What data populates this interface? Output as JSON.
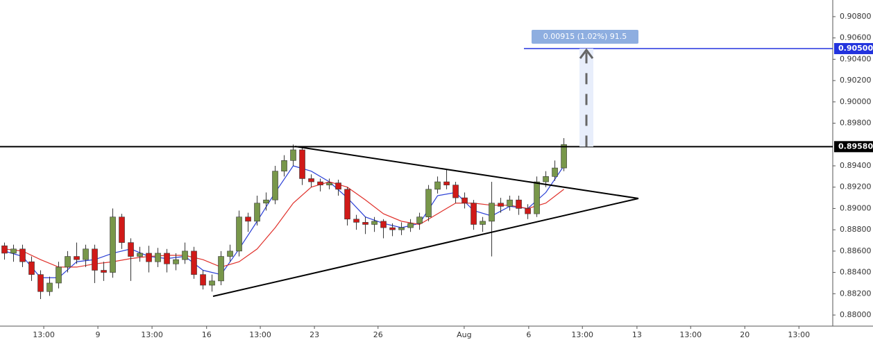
{
  "chart_data": {
    "type": "candlestick",
    "up_color": "#78974a",
    "down_color": "#d01a18",
    "x": [
      1,
      3,
      5,
      7,
      9,
      11,
      13,
      15,
      17,
      19,
      21,
      23,
      25,
      27,
      29,
      31,
      33,
      35,
      37,
      39,
      41,
      43,
      45,
      47,
      49,
      51,
      53,
      55,
      57,
      59,
      61,
      63,
      65,
      67,
      69,
      71,
      73,
      75,
      77,
      79,
      81,
      83,
      85,
      87,
      89,
      91,
      93,
      95,
      97,
      99,
      101,
      103,
      105,
      107,
      109,
      111,
      113,
      115,
      117,
      119,
      121,
      123,
      125
    ],
    "ohlc": [
      [
        0.8865,
        0.8868,
        0.8852,
        0.8858
      ],
      [
        0.8858,
        0.8866,
        0.885,
        0.8862
      ],
      [
        0.8862,
        0.8866,
        0.8845,
        0.885
      ],
      [
        0.885,
        0.8855,
        0.8832,
        0.8838
      ],
      [
        0.8838,
        0.8842,
        0.8815,
        0.8822
      ],
      [
        0.8822,
        0.8836,
        0.8818,
        0.883
      ],
      [
        0.883,
        0.885,
        0.8825,
        0.8845
      ],
      [
        0.8845,
        0.886,
        0.884,
        0.8855
      ],
      [
        0.8855,
        0.8868,
        0.8848,
        0.8852
      ],
      [
        0.8852,
        0.8866,
        0.8845,
        0.8862
      ],
      [
        0.8862,
        0.8866,
        0.883,
        0.8842
      ],
      [
        0.8842,
        0.885,
        0.8832,
        0.884
      ],
      [
        0.884,
        0.89,
        0.8835,
        0.8892
      ],
      [
        0.8892,
        0.8895,
        0.8862,
        0.8868
      ],
      [
        0.8868,
        0.8872,
        0.8832,
        0.8855
      ],
      [
        0.8855,
        0.8864,
        0.885,
        0.8858
      ],
      [
        0.8858,
        0.8865,
        0.884,
        0.885
      ],
      [
        0.885,
        0.8863,
        0.8845,
        0.8858
      ],
      [
        0.8858,
        0.8862,
        0.884,
        0.8848
      ],
      [
        0.8848,
        0.8858,
        0.8842,
        0.8852
      ],
      [
        0.8852,
        0.8868,
        0.8848,
        0.886
      ],
      [
        0.886,
        0.8864,
        0.8834,
        0.8838
      ],
      [
        0.8838,
        0.8842,
        0.8824,
        0.8828
      ],
      [
        0.8828,
        0.8838,
        0.8822,
        0.8832
      ],
      [
        0.8832,
        0.886,
        0.8828,
        0.8855
      ],
      [
        0.8855,
        0.8866,
        0.885,
        0.886
      ],
      [
        0.886,
        0.8898,
        0.8855,
        0.8892
      ],
      [
        0.8892,
        0.8896,
        0.8878,
        0.8888
      ],
      [
        0.8888,
        0.8912,
        0.8884,
        0.8905
      ],
      [
        0.8905,
        0.8915,
        0.8898,
        0.8908
      ],
      [
        0.8908,
        0.894,
        0.8904,
        0.8935
      ],
      [
        0.8935,
        0.895,
        0.893,
        0.8945
      ],
      [
        0.8945,
        0.896,
        0.894,
        0.8955
      ],
      [
        0.8955,
        0.8958,
        0.8922,
        0.8928
      ],
      [
        0.8928,
        0.8932,
        0.892,
        0.8925
      ],
      [
        0.8925,
        0.8928,
        0.8916,
        0.8922
      ],
      [
        0.8922,
        0.8928,
        0.8918,
        0.8924
      ],
      [
        0.8924,
        0.8927,
        0.8912,
        0.8918
      ],
      [
        0.8918,
        0.892,
        0.8884,
        0.889
      ],
      [
        0.889,
        0.8894,
        0.888,
        0.8887
      ],
      [
        0.8887,
        0.8892,
        0.8876,
        0.8885
      ],
      [
        0.8885,
        0.8892,
        0.8878,
        0.8888
      ],
      [
        0.8888,
        0.889,
        0.8872,
        0.8882
      ],
      [
        0.8882,
        0.8886,
        0.8874,
        0.888
      ],
      [
        0.888,
        0.8887,
        0.8875,
        0.8882
      ],
      [
        0.8882,
        0.889,
        0.8878,
        0.8886
      ],
      [
        0.8886,
        0.8896,
        0.888,
        0.8892
      ],
      [
        0.8892,
        0.8922,
        0.8888,
        0.8918
      ],
      [
        0.8918,
        0.893,
        0.8914,
        0.8925
      ],
      [
        0.8925,
        0.8937,
        0.8918,
        0.8922
      ],
      [
        0.8922,
        0.8925,
        0.8905,
        0.891
      ],
      [
        0.891,
        0.8915,
        0.89,
        0.8905
      ],
      [
        0.8905,
        0.8908,
        0.888,
        0.8885
      ],
      [
        0.8885,
        0.8892,
        0.8878,
        0.8888
      ],
      [
        0.8888,
        0.8925,
        0.8855,
        0.8905
      ],
      [
        0.8905,
        0.891,
        0.8896,
        0.8902
      ],
      [
        0.8902,
        0.8912,
        0.8898,
        0.8908
      ],
      [
        0.8908,
        0.8912,
        0.8894,
        0.89
      ],
      [
        0.89,
        0.8904,
        0.889,
        0.8895
      ],
      [
        0.8895,
        0.893,
        0.8892,
        0.8925
      ],
      [
        0.8925,
        0.8935,
        0.892,
        0.893
      ],
      [
        0.893,
        0.8945,
        0.8926,
        0.8938
      ],
      [
        0.8938,
        0.8966,
        0.8935,
        0.896
      ]
    ],
    "moving_averages": [
      {
        "color": "#2a3fd6",
        "x": [
          1,
          5,
          9,
          13,
          17,
          21,
          25,
          29,
          33,
          37,
          41,
          45,
          49,
          53,
          57,
          61,
          65,
          69,
          73,
          77,
          81,
          85,
          89,
          93,
          97,
          101,
          105,
          109,
          113,
          117,
          121,
          125
        ],
        "values": [
          0.886,
          0.8855,
          0.8835,
          0.8835,
          0.885,
          0.8852,
          0.8858,
          0.8862,
          0.8855,
          0.8853,
          0.8855,
          0.8842,
          0.8838,
          0.8862,
          0.8888,
          0.8915,
          0.894,
          0.8935,
          0.8925,
          0.891,
          0.8892,
          0.8886,
          0.8882,
          0.8886,
          0.8912,
          0.8915,
          0.8898,
          0.8893,
          0.8902,
          0.89,
          0.8915,
          0.894
        ]
      },
      {
        "color": "#e0302a",
        "x": [
          1,
          5,
          9,
          13,
          17,
          21,
          25,
          29,
          33,
          37,
          41,
          45,
          49,
          53,
          57,
          61,
          65,
          69,
          73,
          77,
          81,
          85,
          89,
          93,
          97,
          101,
          105,
          109,
          113,
          117,
          121,
          125
        ],
        "values": [
          0.8862,
          0.886,
          0.8852,
          0.8845,
          0.8845,
          0.8848,
          0.885,
          0.8853,
          0.8855,
          0.8856,
          0.8856,
          0.8852,
          0.8845,
          0.885,
          0.8862,
          0.8882,
          0.8905,
          0.892,
          0.8925,
          0.892,
          0.8908,
          0.8895,
          0.8888,
          0.8885,
          0.8895,
          0.8905,
          0.8905,
          0.8903,
          0.8903,
          0.89,
          0.8905,
          0.8918
        ]
      }
    ],
    "levels": [
      {
        "value": 0.8958,
        "label": "0.89580",
        "color": "#000000"
      },
      {
        "value": 0.905,
        "label": "0.90500",
        "color": "#2233dd"
      }
    ],
    "measure_label": "0.00915 (1.02%) 91.5",
    "xlim": [
      0,
      184.6
    ],
    "ylim": [
      0.87896,
      0.90956
    ],
    "xticks": [
      {
        "value": 9.7,
        "label": "13:00"
      },
      {
        "value": 21.7,
        "label": "9"
      },
      {
        "value": 33.7,
        "label": "13:00"
      },
      {
        "value": 45.8,
        "label": "16"
      },
      {
        "value": 57.7,
        "label": "13:00"
      },
      {
        "value": 69.7,
        "label": "23"
      },
      {
        "value": 83.8,
        "label": "26"
      },
      {
        "value": 102.9,
        "label": "Aug"
      },
      {
        "value": 117.2,
        "label": "6"
      },
      {
        "value": 129.1,
        "label": "13:00"
      },
      {
        "value": 141.2,
        "label": "13"
      },
      {
        "value": 153.1,
        "label": "13:00"
      },
      {
        "value": 165.1,
        "label": "20"
      },
      {
        "value": 177.1,
        "label": "13:00"
      }
    ],
    "yticks": [
      {
        "value": 0.908,
        "label": "0.90800"
      },
      {
        "value": 0.906,
        "label": "0.90600"
      },
      {
        "value": 0.904,
        "label": "0.90400"
      },
      {
        "value": 0.902,
        "label": "0.90200"
      },
      {
        "value": 0.9,
        "label": "0.90000"
      },
      {
        "value": 0.898,
        "label": "0.89800"
      },
      {
        "value": 0.894,
        "label": "0.89400"
      },
      {
        "value": 0.892,
        "label": "0.89200"
      },
      {
        "value": 0.89,
        "label": "0.89000"
      },
      {
        "value": 0.888,
        "label": "0.88800"
      },
      {
        "value": 0.886,
        "label": "0.88600"
      },
      {
        "value": 0.884,
        "label": "0.88400"
      },
      {
        "value": 0.882,
        "label": "0.88200"
      },
      {
        "value": 0.88,
        "label": "0.88000"
      }
    ]
  }
}
